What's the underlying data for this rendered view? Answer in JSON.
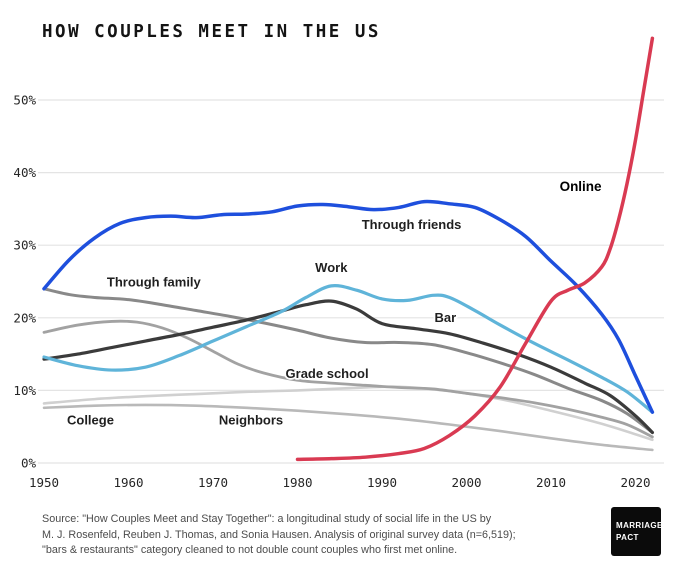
{
  "title": "HOW COUPLES MEET IN THE US",
  "source_lines": [
    "Source: \"How Couples Meet and Stay Together\": a longitudinal study of social life in the US by",
    "M. J. Rosenfeld, Reuben J. Thomas, and Sonia Hausen. Analysis of original survey data (n=6,519);",
    "\"bars & restaurants\" category cleaned to not double count couples who first met online."
  ],
  "logo": {
    "line1": "MARRIAGE",
    "line2": "PACT"
  },
  "chart_data": {
    "type": "line",
    "title": "HOW COUPLES MEET IN THE US",
    "xlabel": "",
    "ylabel": "",
    "xlim": [
      1950,
      2023
    ],
    "ylim": [
      0,
      60
    ],
    "xticks": [
      1950,
      1960,
      1970,
      1980,
      1990,
      2000,
      2010,
      2020
    ],
    "yticks": [
      0,
      10,
      20,
      30,
      40,
      50
    ],
    "ytick_suffix": "%",
    "grid": true,
    "legend": "inline-labels",
    "series": [
      {
        "name": "College",
        "color": "#d0d0d0",
        "width": 2.6,
        "points": [
          [
            1950,
            8.2
          ],
          [
            1956,
            8.8
          ],
          [
            1962,
            9.2
          ],
          [
            1968,
            9.5
          ],
          [
            1974,
            9.8
          ],
          [
            1980,
            10
          ],
          [
            1986,
            10.3
          ],
          [
            1992,
            10.5
          ],
          [
            1998,
            9.9
          ],
          [
            2004,
            8.8
          ],
          [
            2010,
            7.2
          ],
          [
            2016,
            5.4
          ],
          [
            2022,
            3.2
          ]
        ]
      },
      {
        "name": "Neighbors",
        "color": "#b9b9b9",
        "width": 2.6,
        "points": [
          [
            1950,
            7.6
          ],
          [
            1956,
            7.9
          ],
          [
            1962,
            8.0
          ],
          [
            1968,
            7.9
          ],
          [
            1974,
            7.6
          ],
          [
            1980,
            7.2
          ],
          [
            1986,
            6.7
          ],
          [
            1992,
            6.1
          ],
          [
            1998,
            5.3
          ],
          [
            2004,
            4.4
          ],
          [
            2010,
            3.4
          ],
          [
            2016,
            2.5
          ],
          [
            2022,
            1.8
          ]
        ]
      },
      {
        "name": "Grade school",
        "color": "#a2a2a2",
        "width": 2.8,
        "points": [
          [
            1950,
            18
          ],
          [
            1954,
            19
          ],
          [
            1958,
            19.5
          ],
          [
            1961,
            19.4
          ],
          [
            1964,
            18.6
          ],
          [
            1967,
            17.2
          ],
          [
            1970,
            15.4
          ],
          [
            1973,
            13.6
          ],
          [
            1976,
            12.4
          ],
          [
            1980,
            11.4
          ],
          [
            1984,
            11
          ],
          [
            1988,
            10.7
          ],
          [
            1992,
            10.4
          ],
          [
            1996,
            10.2
          ],
          [
            2000,
            9.6
          ],
          [
            2004,
            9
          ],
          [
            2008,
            8.3
          ],
          [
            2012,
            7.4
          ],
          [
            2016,
            6.3
          ],
          [
            2019,
            5.3
          ],
          [
            2022,
            3.6
          ]
        ]
      },
      {
        "name": "Through family",
        "color": "#898989",
        "width": 3,
        "points": [
          [
            1950,
            24
          ],
          [
            1953,
            23.2
          ],
          [
            1956,
            22.8
          ],
          [
            1960,
            22.5
          ],
          [
            1964,
            21.8
          ],
          [
            1968,
            21
          ],
          [
            1972,
            20.2
          ],
          [
            1976,
            19.3
          ],
          [
            1980,
            18.3
          ],
          [
            1984,
            17.2
          ],
          [
            1988,
            16.6
          ],
          [
            1992,
            16.6
          ],
          [
            1996,
            16.3
          ],
          [
            2000,
            15.2
          ],
          [
            2004,
            13.8
          ],
          [
            2008,
            12.2
          ],
          [
            2012,
            10.3
          ],
          [
            2016,
            8.6
          ],
          [
            2019,
            6.8
          ],
          [
            2022,
            4.2
          ]
        ]
      },
      {
        "name": "Bar",
        "color": "#3b3b3b",
        "width": 3.2,
        "points": [
          [
            1950,
            14.3
          ],
          [
            1954,
            15
          ],
          [
            1958,
            15.9
          ],
          [
            1962,
            16.8
          ],
          [
            1966,
            17.7
          ],
          [
            1970,
            18.7
          ],
          [
            1974,
            19.7
          ],
          [
            1978,
            20.9
          ],
          [
            1981,
            21.8
          ],
          [
            1984,
            22.3
          ],
          [
            1987,
            21.2
          ],
          [
            1990,
            19.2
          ],
          [
            1994,
            18.5
          ],
          [
            1998,
            17.8
          ],
          [
            2002,
            16.5
          ],
          [
            2006,
            15
          ],
          [
            2010,
            13.2
          ],
          [
            2014,
            11
          ],
          [
            2017,
            9.3
          ],
          [
            2020,
            6.5
          ],
          [
            2022,
            4.2
          ]
        ]
      },
      {
        "name": "Work",
        "color": "#5fb4d9",
        "width": 3.2,
        "points": [
          [
            1950,
            14.6
          ],
          [
            1954,
            13.4
          ],
          [
            1958,
            12.8
          ],
          [
            1962,
            13.2
          ],
          [
            1966,
            14.8
          ],
          [
            1970,
            16.8
          ],
          [
            1974,
            18.8
          ],
          [
            1978,
            20.8
          ],
          [
            1981,
            22.8
          ],
          [
            1984,
            24.4
          ],
          [
            1987,
            23.8
          ],
          [
            1990,
            22.6
          ],
          [
            1993,
            22.4
          ],
          [
            1996,
            23.1
          ],
          [
            1998,
            22.8
          ],
          [
            2001,
            21
          ],
          [
            2004,
            19
          ],
          [
            2008,
            16.5
          ],
          [
            2012,
            14.2
          ],
          [
            2016,
            11.8
          ],
          [
            2019,
            9.8
          ],
          [
            2022,
            7
          ]
        ]
      },
      {
        "name": "Through friends",
        "color": "#1e4fdd",
        "width": 3.5,
        "points": [
          [
            1950,
            24
          ],
          [
            1953,
            28
          ],
          [
            1956,
            31
          ],
          [
            1959,
            33
          ],
          [
            1962,
            33.8
          ],
          [
            1965,
            34
          ],
          [
            1968,
            33.8
          ],
          [
            1971,
            34.2
          ],
          [
            1974,
            34.3
          ],
          [
            1977,
            34.6
          ],
          [
            1980,
            35.4
          ],
          [
            1983,
            35.6
          ],
          [
            1986,
            35.3
          ],
          [
            1989,
            34.9
          ],
          [
            1992,
            35.2
          ],
          [
            1995,
            36
          ],
          [
            1998,
            35.7
          ],
          [
            2001,
            35.2
          ],
          [
            2004,
            33.5
          ],
          [
            2007,
            31.2
          ],
          [
            2010,
            27.8
          ],
          [
            2013,
            24.5
          ],
          [
            2016,
            20.5
          ],
          [
            2018,
            17
          ],
          [
            2020,
            12
          ],
          [
            2022,
            7
          ]
        ]
      },
      {
        "name": "Online",
        "color": "#d93a52",
        "width": 3.5,
        "points": [
          [
            1980,
            0.5
          ],
          [
            1984,
            0.6
          ],
          [
            1988,
            0.8
          ],
          [
            1992,
            1.3
          ],
          [
            1995,
            2
          ],
          [
            1998,
            3.8
          ],
          [
            2001,
            6.5
          ],
          [
            2004,
            10.5
          ],
          [
            2007,
            16.5
          ],
          [
            2010,
            22.3
          ],
          [
            2012,
            23.8
          ],
          [
            2014,
            24.8
          ],
          [
            2016,
            27
          ],
          [
            2017,
            29.5
          ],
          [
            2018,
            33.5
          ],
          [
            2019,
            38.5
          ],
          [
            2020,
            44.5
          ],
          [
            2021,
            51.5
          ],
          [
            2022,
            58.5
          ]
        ]
      }
    ],
    "annotations": [
      {
        "text": "Through friends",
        "x": 1993.5,
        "y": 32.2,
        "bold": false
      },
      {
        "text": "Through family",
        "x": 1963,
        "y": 24.3,
        "bold": false
      },
      {
        "text": "Work",
        "x": 1984,
        "y": 26.3,
        "bold": false
      },
      {
        "text": "Bar",
        "x": 1997.5,
        "y": 19.4,
        "bold": false
      },
      {
        "text": "Grade school",
        "x": 1983.5,
        "y": 11.7,
        "bold": false
      },
      {
        "text": "College",
        "x": 1955.5,
        "y": 5.3,
        "bold": false
      },
      {
        "text": "Neighbors",
        "x": 1974.5,
        "y": 5.3,
        "bold": false
      },
      {
        "text": "Online",
        "x": 2013.5,
        "y": 37.5,
        "bold": true
      }
    ]
  }
}
